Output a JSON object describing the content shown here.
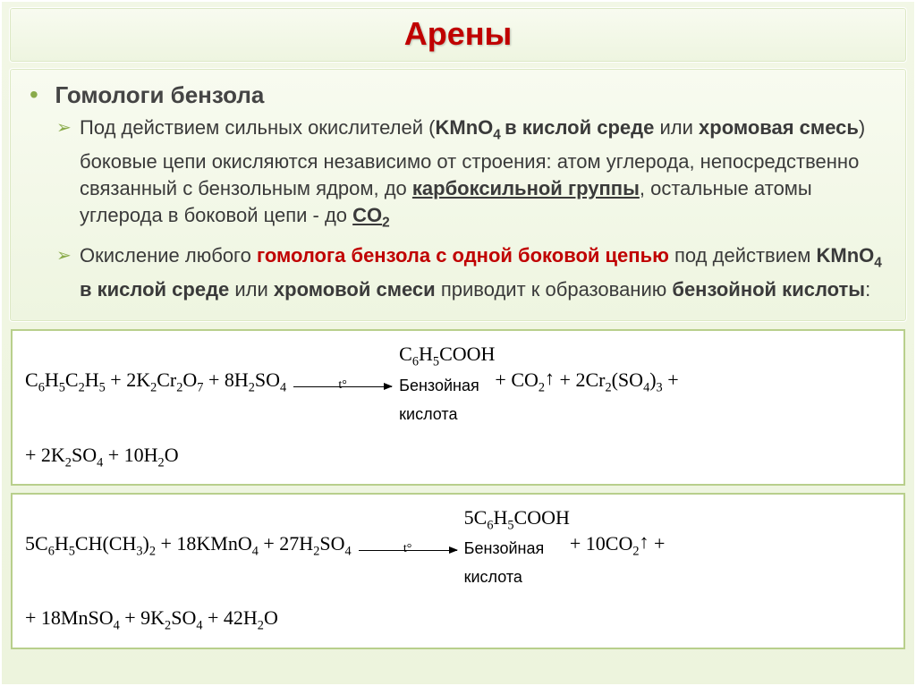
{
  "title": "Арены",
  "heading": "Гомологи бензола",
  "para1_pre": "Под действием сильных окислителей (",
  "para1_kmno4": "KMnO",
  "para1_kmno4_sub": "4 ",
  "para1_env": "в кислой среде",
  "para1_or": " или ",
  "para1_mix": "хромовая смесь",
  "para1_rest": ") боковые цепи окисляются независимо от строения: атом углерода, непосредственно связанный с бензольным ядром, до ",
  "para1_carboxyl": "карбоксильной группы",
  "para1_tail": ", остальные атомы углерода в боковой цепи - до ",
  "para1_co2": "CO",
  "para1_co2_sub": "2",
  "para2_pre": "Окисление любого ",
  "para2_homo": "гомолога бензола с одной боковой цепью",
  "para2_mid1": " под действием ",
  "para2_kmno4": "KMnO",
  "para2_kmno4_sub": "4 ",
  "para2_env": "в кислой среде ",
  "para2_or": "или ",
  "para2_mix": "хромовой смеси ",
  "para2_mid2": "приводит к образованию ",
  "para2_acid": "бензойной кислоты",
  "para2_colon": ":",
  "eq1": {
    "lhs": "C<sub class='eq-sub'>6</sub>H<sub class='eq-sub'>5</sub>C<sub class='eq-sub'>2</sub>H<sub class='eq-sub'>5</sub> + 2K<sub class='eq-sub'>2</sub>Cr<sub class='eq-sub'>2</sub>O<sub class='eq-sub'>7</sub> + 8H<sub class='eq-sub'>2</sub>SO<sub class='eq-sub'>4</sub>",
    "arrow_label": "t°",
    "rhs_a": "C<sub class='eq-sub'>6</sub>H<sub class='eq-sub'>5</sub>COOH",
    "rhs_label": "Бензойная кислота",
    "rhs_b": " + CO<sub class='eq-sub'>2</sub><span class='gasarrow'>↑</span> + 2Cr<sub class='eq-sub'>2</sub>(SO<sub class='eq-sub'>4</sub>)<sub class='eq-sub'>3</sub> +",
    "line2": "+ 2K<sub class='eq-sub'>2</sub>SO<sub class='eq-sub'>4</sub> + 10H<sub class='eq-sub'>2</sub>O"
  },
  "eq2": {
    "lhs": "5C<sub class='eq-sub'>6</sub>H<sub class='eq-sub'>5</sub>CH(CH<sub class='eq-sub'>3</sub>)<sub class='eq-sub'>2</sub> + 18KMnO<sub class='eq-sub'>4</sub> + 27H<sub class='eq-sub'>2</sub>SO<sub class='eq-sub'>4</sub>",
    "arrow_label": "t°",
    "rhs_a": "5C<sub class='eq-sub'>6</sub>H<sub class='eq-sub'>5</sub>COOH",
    "rhs_label": "Бензойная кислота",
    "rhs_b": " + 10CO<sub class='eq-sub'>2</sub><span class='gasarrow'>↑</span> +",
    "line2": "+ 18MnSO<sub class='eq-sub'>4</sub> + 9K<sub class='eq-sub'>2</sub>SO<sub class='eq-sub'>4</sub> + 42H<sub class='eq-sub'>2</sub>O"
  },
  "colors": {
    "title": "#c00000",
    "bullet": "#8aab4a",
    "border": "#b8cf8c"
  }
}
